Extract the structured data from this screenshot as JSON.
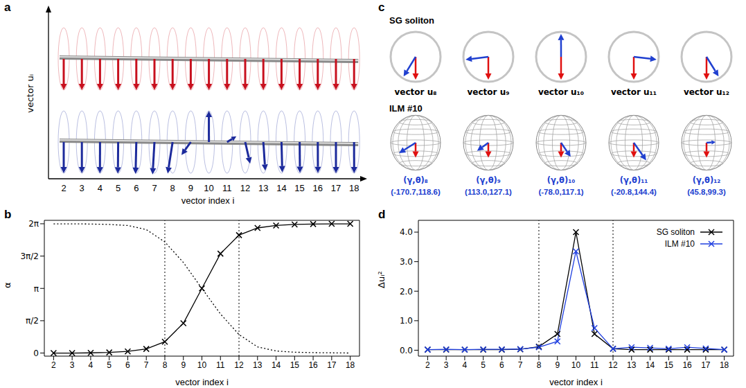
{
  "panel_a": {
    "letter": "a",
    "x_label": "vector index i",
    "y_label": "vector uᵢ",
    "x": [
      2,
      3,
      4,
      5,
      6,
      7,
      8,
      9,
      10,
      11,
      12,
      13,
      14,
      15,
      16,
      17,
      18
    ],
    "rows": [
      {
        "color": "#c8101e",
        "alpha": [
          0,
          0,
          0,
          0,
          0,
          0,
          0,
          0,
          0,
          0,
          0,
          0,
          0,
          0,
          0,
          0,
          0
        ]
      },
      {
        "color": "#1c2a9c",
        "alpha": [
          0,
          0,
          0.01,
          0.03,
          0.08,
          0.2,
          0.55,
          1.45,
          3.14,
          4.83,
          5.73,
          6.08,
          6.2,
          6.25,
          6.27,
          6.28,
          6.28
        ]
      }
    ]
  },
  "chart_data": [
    {
      "panel": "b",
      "type": "line",
      "x": [
        2,
        3,
        4,
        5,
        6,
        7,
        8,
        9,
        10,
        11,
        12,
        13,
        14,
        15,
        16,
        17,
        18
      ],
      "series": [
        {
          "values": [
            0,
            0,
            0.01,
            0.03,
            0.08,
            0.2,
            0.55,
            1.45,
            3.14,
            4.83,
            5.73,
            6.08,
            6.2,
            6.25,
            6.27,
            6.28,
            6.28
          ],
          "color": "#000000",
          "marker": "x",
          "line_style": "solid"
        },
        {
          "values": [
            6.28,
            6.28,
            6.27,
            6.25,
            6.2,
            6.0,
            5.4,
            4.4,
            3.14,
            1.9,
            0.9,
            0.3,
            0.1,
            0.04,
            0.02,
            0.01,
            0
          ],
          "color": "#000000",
          "marker": "none",
          "line_style": "dotted"
        }
      ],
      "x_label": "vector index i",
      "y_label": "α",
      "xlim": [
        1.5,
        18.5
      ],
      "xticks": [
        2,
        3,
        4,
        5,
        6,
        7,
        8,
        9,
        10,
        11,
        12,
        13,
        14,
        15,
        16,
        17,
        18
      ],
      "ylim": [
        -0.15,
        6.45
      ],
      "yticks": [
        0,
        {
          "value": 1.5708,
          "label": "π/2"
        },
        {
          "value": 3.1416,
          "label": "π"
        },
        {
          "value": 4.7124,
          "label": "3π/2"
        },
        {
          "value": 6.2832,
          "label": "2π"
        }
      ],
      "vlines": [
        8,
        12
      ]
    },
    {
      "panel": "d",
      "type": "line",
      "x": [
        2,
        3,
        4,
        5,
        6,
        7,
        8,
        9,
        10,
        11,
        12,
        13,
        14,
        15,
        16,
        17,
        18
      ],
      "series": [
        {
          "name": "SG soliton",
          "color": "#000000",
          "marker": "x",
          "line_style": "solid",
          "values": [
            0.02,
            0.02,
            0.02,
            0.02,
            0.02,
            0.03,
            0.12,
            0.55,
            4.0,
            0.55,
            0.05,
            0.02,
            0.02,
            0.02,
            0.02,
            0.02,
            0.02
          ]
        },
        {
          "name": "ILM #10",
          "color": "#1f3fe0",
          "marker": "x",
          "line_style": "solid",
          "values": [
            0.02,
            0.03,
            0.02,
            0.03,
            0.03,
            0.04,
            0.1,
            0.3,
            3.35,
            0.75,
            0.05,
            0.1,
            0.08,
            0.05,
            0.1,
            0.06,
            0.02
          ]
        }
      ],
      "x_label": "vector index i",
      "y_label": "Δuᵢ²",
      "xlim": [
        1.5,
        18.5
      ],
      "xticks": [
        2,
        3,
        4,
        5,
        6,
        7,
        8,
        9,
        10,
        11,
        12,
        13,
        14,
        15,
        16,
        17,
        18
      ],
      "ylim": [
        -0.2,
        4.4
      ],
      "yticks": [
        {
          "value": 0,
          "label": "0.0"
        },
        {
          "value": 1,
          "label": "1.0"
        },
        {
          "value": 2,
          "label": "2.0"
        },
        {
          "value": 3,
          "label": "3.0"
        },
        {
          "value": 4,
          "label": "4.0"
        }
      ],
      "legend": "upper right",
      "vlines": [
        8,
        12
      ]
    }
  ],
  "panel_c": {
    "letter": "c",
    "reference_color": "#e01010",
    "arrow_color": "#2040d0",
    "soliton": {
      "title": "SG soliton",
      "items": [
        {
          "label": "vector u₈",
          "alpha": 0.55
        },
        {
          "label": "vector u₉",
          "alpha": 1.45
        },
        {
          "label": "vector u₁₀",
          "alpha": 3.14
        },
        {
          "label": "vector u₁₁",
          "alpha": 4.83
        },
        {
          "label": "vector u₁₂",
          "alpha": 5.73
        }
      ]
    },
    "ilm": {
      "title": "ILM #10",
      "items": [
        {
          "label": "(γ,θ)₈",
          "values_label": "(-170.7,118.6)",
          "gamma": -170.7,
          "theta": 118.6
        },
        {
          "label": "(γ,θ)₉",
          "values_label": "(113.0,127.1)",
          "gamma": 113.0,
          "theta": 127.1
        },
        {
          "label": "(γ,θ)₁₀",
          "values_label": "(-78.0,117.1)",
          "gamma": -78.0,
          "theta": 117.1
        },
        {
          "label": "(γ,θ)₁₁",
          "values_label": "(-20.8,144.4)",
          "gamma": -20.8,
          "theta": 144.4
        },
        {
          "label": "(γ,θ)₁₂",
          "values_label": "(45.8,99.3)",
          "gamma": 45.8,
          "theta": 99.3
        }
      ]
    }
  }
}
